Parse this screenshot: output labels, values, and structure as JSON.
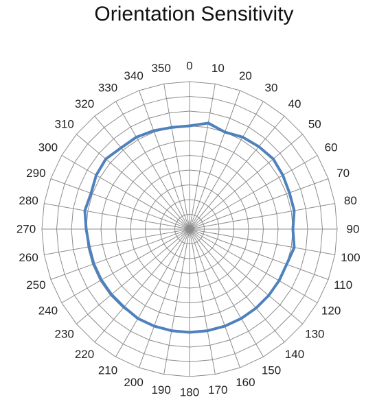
{
  "title": "Orientation Sensitivity",
  "chart_data": {
    "type": "radar",
    "title": "Orientation Sensitivity",
    "angle_categories": [
      "0",
      "10",
      "20",
      "30",
      "40",
      "50",
      "60",
      "70",
      "80",
      "90",
      "100",
      "110",
      "120",
      "130",
      "140",
      "150",
      "160",
      "170",
      "180",
      "190",
      "200",
      "210",
      "220",
      "230",
      "240",
      "250",
      "260",
      "270",
      "280",
      "290",
      "300",
      "310",
      "320",
      "330",
      "340",
      "350"
    ],
    "radial_range": [
      0,
      10
    ],
    "grid": true,
    "legend": "none",
    "series": [
      {
        "color": "#4f81bd",
        "values": [
          7.0,
          7.3,
          7.0,
          7.2,
          7.3,
          7.4,
          7.3,
          7.2,
          7.2,
          7.0,
          7.2,
          7.0,
          7.0,
          7.0,
          7.0,
          7.0,
          7.0,
          7.0,
          7.0,
          7.0,
          7.0,
          7.0,
          6.9,
          6.9,
          6.9,
          6.9,
          6.9,
          7.0,
          7.2,
          7.1,
          7.3,
          7.4,
          7.2,
          7.2,
          7.1,
          7.0
        ]
      }
    ]
  }
}
